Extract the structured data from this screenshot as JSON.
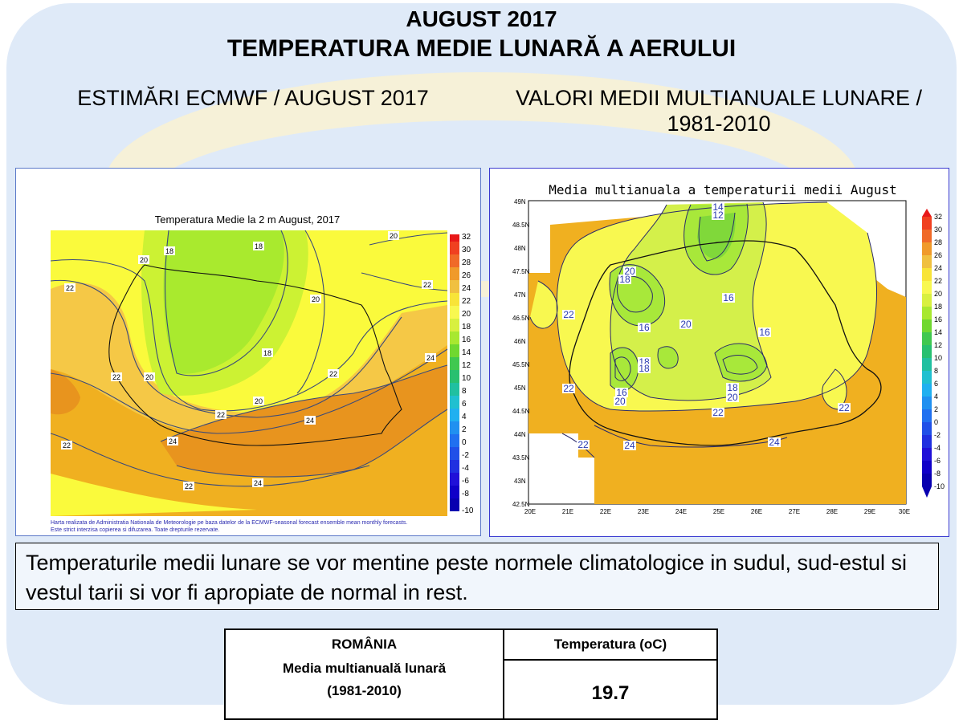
{
  "header": {
    "title": "AUGUST 2017",
    "subtitle": "TEMPERATURA MEDIE LUNARĂ A AERULUI",
    "left_heading": "ESTIMĂRI ECMWF / AUGUST 2017",
    "right_heading": "VALORI MEDII MULTIANUALE LUNARE / 1981-2010"
  },
  "left_map": {
    "title": "Temperatura Medie la 2 m August, 2017",
    "colorbar": [
      "32",
      "30",
      "28",
      "26",
      "24",
      "22",
      "20",
      "18",
      "16",
      "14",
      "12",
      "10",
      "8",
      "6",
      "4",
      "2",
      "0",
      "-2",
      "-4",
      "-6",
      "-8",
      "-10"
    ],
    "contour_labels": [
      "18",
      "18",
      "20",
      "20",
      "22",
      "22",
      "20",
      "18",
      "22",
      "20",
      "22",
      "24",
      "22",
      "24",
      "22",
      "24",
      "24",
      "22",
      "20"
    ],
    "footer_1": "Harta realizata de Administratia Nationala de Meteorologie pe baza datelor de la ECMWF-seasonal forecast ensemble mean monthly forecasts.",
    "footer_2": "Este strict interzisa copierea si difuzarea. Toate drepturile rezervate."
  },
  "right_map": {
    "title": "Media multianuala a temperaturii medii August",
    "lat_labels": [
      "49N",
      "48.5N",
      "48N",
      "47.5N",
      "47N",
      "46.5N",
      "46N",
      "45.5N",
      "45N",
      "44.5N",
      "44N",
      "43.5N",
      "43N",
      "42.5N"
    ],
    "lon_labels": [
      "20E",
      "21E",
      "22E",
      "23E",
      "24E",
      "25E",
      "26E",
      "27E",
      "28E",
      "29E",
      "30E"
    ],
    "colorbar": [
      "32",
      "30",
      "28",
      "26",
      "24",
      "22",
      "20",
      "18",
      "16",
      "14",
      "12",
      "10",
      "8",
      "6",
      "4",
      "2",
      "0",
      "-2",
      "-4",
      "-6",
      "-8",
      "-10"
    ],
    "contour_labels": [
      "14",
      "12",
      "20",
      "18",
      "22",
      "16",
      "20",
      "16",
      "16",
      "18",
      "18",
      "22",
      "16",
      "20",
      "18",
      "20",
      "22",
      "22",
      "22",
      "24",
      "24"
    ]
  },
  "note": "Temperaturile medii lunare se vor mentine peste normele climatologice in sudul, sud-estul si vestul tarii si vor fi apropiate de normal in rest.",
  "stats": {
    "row_label_1": "ROMÂNIA",
    "row_label_2": "Media multianuală lunară",
    "row_label_3": "(1981-2010)",
    "col_header": "Temperatura (oC)",
    "value": "19.7"
  }
}
